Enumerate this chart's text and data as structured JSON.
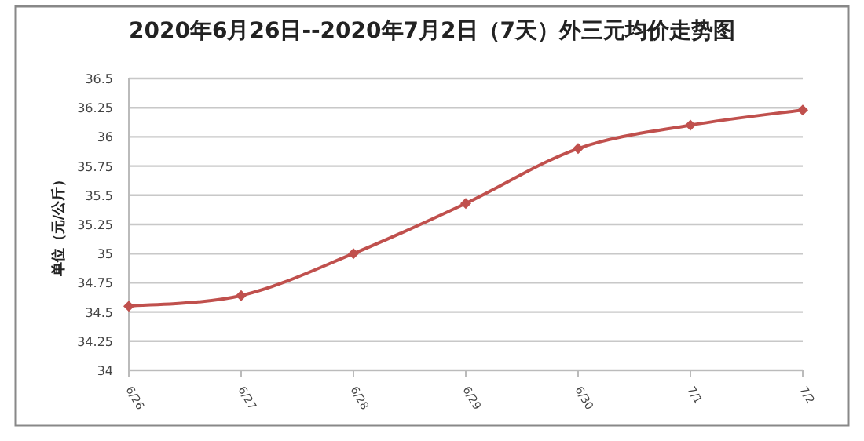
{
  "chart_data": {
    "type": "line",
    "title": "2020年6月26日--2020年7月2日（7天）外三元均价走势图",
    "ylabel": "单位（元/公斤）",
    "categories": [
      "6/26",
      "6/27",
      "6/28",
      "6/29",
      "6/30",
      "7/1",
      "7/2"
    ],
    "series": [
      {
        "color": "#c0504d",
        "values": [
          34.55,
          34.64,
          35.0,
          35.43,
          35.9,
          36.1,
          36.23
        ]
      }
    ],
    "ylim": [
      34,
      36.5
    ],
    "yticks": [
      34,
      34.25,
      34.5,
      34.75,
      35,
      35.25,
      35.5,
      35.75,
      36,
      36.25,
      36.5
    ],
    "grid": "y",
    "marker": "diamond",
    "line_style": "solid"
  }
}
